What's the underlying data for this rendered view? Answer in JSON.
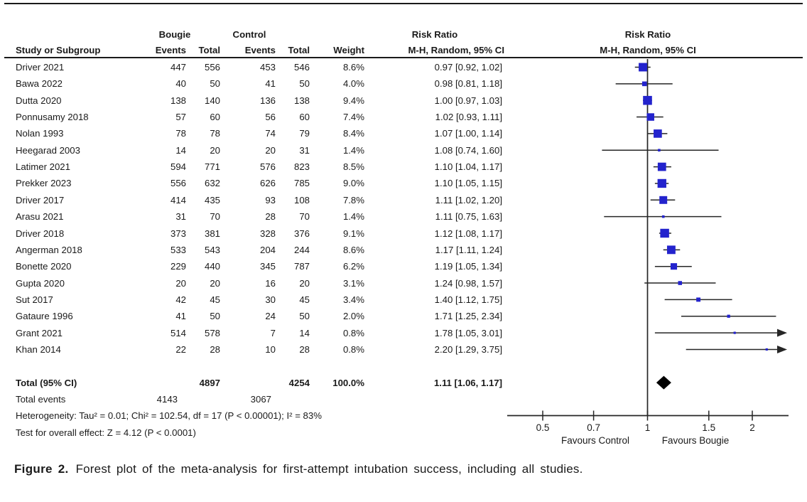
{
  "chart_data": {
    "type": "forest",
    "group_headers": {
      "bougie": "Bougie",
      "control": "Control",
      "risk_ratio_left": "Risk Ratio",
      "risk_ratio_right": "Risk Ratio"
    },
    "column_headers": {
      "study": "Study or Subgroup",
      "events": "Events",
      "total": "Total",
      "events2": "Events",
      "total2": "Total",
      "weight": "Weight",
      "mh_ci_left": "M-H, Random, 95% CI",
      "mh_ci_right": "M-H, Random, 95% CI"
    },
    "studies": [
      {
        "name": "Driver 2021",
        "b_events": "447",
        "b_total": "556",
        "c_events": "453",
        "c_total": "546",
        "weight": "8.6%",
        "weight_pct": 8.6,
        "rr": 0.97,
        "ci_low": 0.92,
        "ci_high": 1.02,
        "label": "0.97 [0.92, 1.02]"
      },
      {
        "name": "Bawa 2022",
        "b_events": "40",
        "b_total": "50",
        "c_events": "41",
        "c_total": "50",
        "weight": "4.0%",
        "weight_pct": 4.0,
        "rr": 0.98,
        "ci_low": 0.81,
        "ci_high": 1.18,
        "label": "0.98 [0.81, 1.18]"
      },
      {
        "name": "Dutta 2020",
        "b_events": "138",
        "b_total": "140",
        "c_events": "136",
        "c_total": "138",
        "weight": "9.4%",
        "weight_pct": 9.4,
        "rr": 1.0,
        "ci_low": 0.97,
        "ci_high": 1.03,
        "label": "1.00 [0.97, 1.03]"
      },
      {
        "name": "Ponnusamy 2018",
        "b_events": "57",
        "b_total": "60",
        "c_events": "56",
        "c_total": "60",
        "weight": "7.4%",
        "weight_pct": 7.4,
        "rr": 1.02,
        "ci_low": 0.93,
        "ci_high": 1.11,
        "label": "1.02 [0.93, 1.11]"
      },
      {
        "name": "Nolan 1993",
        "b_events": "78",
        "b_total": "78",
        "c_events": "74",
        "c_total": "79",
        "weight": "8.4%",
        "weight_pct": 8.4,
        "rr": 1.07,
        "ci_low": 1.0,
        "ci_high": 1.14,
        "label": "1.07 [1.00, 1.14]"
      },
      {
        "name": "Heegarad 2003",
        "b_events": "14",
        "b_total": "20",
        "c_events": "20",
        "c_total": "31",
        "weight": "1.4%",
        "weight_pct": 1.4,
        "rr": 1.08,
        "ci_low": 0.74,
        "ci_high": 1.6,
        "label": "1.08 [0.74, 1.60]"
      },
      {
        "name": "Latimer 2021",
        "b_events": "594",
        "b_total": "771",
        "c_events": "576",
        "c_total": "823",
        "weight": "8.5%",
        "weight_pct": 8.5,
        "rr": 1.1,
        "ci_low": 1.04,
        "ci_high": 1.17,
        "label": "1.10 [1.04, 1.17]"
      },
      {
        "name": "Prekker 2023",
        "b_events": "556",
        "b_total": "632",
        "c_events": "626",
        "c_total": "785",
        "weight": "9.0%",
        "weight_pct": 9.0,
        "rr": 1.1,
        "ci_low": 1.05,
        "ci_high": 1.15,
        "label": "1.10 [1.05, 1.15]"
      },
      {
        "name": "Driver 2017",
        "b_events": "414",
        "b_total": "435",
        "c_events": "93",
        "c_total": "108",
        "weight": "7.8%",
        "weight_pct": 7.8,
        "rr": 1.11,
        "ci_low": 1.02,
        "ci_high": 1.2,
        "label": "1.11 [1.02, 1.20]"
      },
      {
        "name": "Arasu 2021",
        "b_events": "31",
        "b_total": "70",
        "c_events": "28",
        "c_total": "70",
        "weight": "1.4%",
        "weight_pct": 1.4,
        "rr": 1.11,
        "ci_low": 0.75,
        "ci_high": 1.63,
        "label": "1.11 [0.75, 1.63]"
      },
      {
        "name": "Driver 2018",
        "b_events": "373",
        "b_total": "381",
        "c_events": "328",
        "c_total": "376",
        "weight": "9.1%",
        "weight_pct": 9.1,
        "rr": 1.12,
        "ci_low": 1.08,
        "ci_high": 1.17,
        "label": "1.12 [1.08, 1.17]"
      },
      {
        "name": "Angerman 2018",
        "b_events": "533",
        "b_total": "543",
        "c_events": "204",
        "c_total": "244",
        "weight": "8.6%",
        "weight_pct": 8.6,
        "rr": 1.17,
        "ci_low": 1.11,
        "ci_high": 1.24,
        "label": "1.17 [1.11, 1.24]"
      },
      {
        "name": "Bonette 2020",
        "b_events": "229",
        "b_total": "440",
        "c_events": "345",
        "c_total": "787",
        "weight": "6.2%",
        "weight_pct": 6.2,
        "rr": 1.19,
        "ci_low": 1.05,
        "ci_high": 1.34,
        "label": "1.19 [1.05, 1.34]"
      },
      {
        "name": "Gupta 2020",
        "b_events": "20",
        "b_total": "20",
        "c_events": "16",
        "c_total": "20",
        "weight": "3.1%",
        "weight_pct": 3.1,
        "rr": 1.24,
        "ci_low": 0.98,
        "ci_high": 1.57,
        "label": "1.24 [0.98, 1.57]"
      },
      {
        "name": "Sut 2017",
        "b_events": "42",
        "b_total": "45",
        "c_events": "30",
        "c_total": "45",
        "weight": "3.4%",
        "weight_pct": 3.4,
        "rr": 1.4,
        "ci_low": 1.12,
        "ci_high": 1.75,
        "label": "1.40 [1.12, 1.75]"
      },
      {
        "name": "Gataure 1996",
        "b_events": "41",
        "b_total": "50",
        "c_events": "24",
        "c_total": "50",
        "weight": "2.0%",
        "weight_pct": 2.0,
        "rr": 1.71,
        "ci_low": 1.25,
        "ci_high": 2.34,
        "label": "1.71 [1.25, 2.34]"
      },
      {
        "name": "Grant 2021",
        "b_events": "514",
        "b_total": "578",
        "c_events": "7",
        "c_total": "14",
        "weight": "0.8%",
        "weight_pct": 0.8,
        "rr": 1.78,
        "ci_low": 1.05,
        "ci_high": 3.01,
        "label": "1.78 [1.05, 3.01]"
      },
      {
        "name": "Khan 2014",
        "b_events": "22",
        "b_total": "28",
        "c_events": "10",
        "c_total": "28",
        "weight": "0.8%",
        "weight_pct": 0.8,
        "rr": 2.2,
        "ci_low": 1.29,
        "ci_high": 3.75,
        "label": "2.20 [1.29, 3.75]"
      }
    ],
    "total": {
      "name": "Total (95% CI)",
      "b_total": "4897",
      "c_total": "4254",
      "weight": "100.0%",
      "rr": 1.11,
      "ci_low": 1.06,
      "ci_high": 1.17,
      "label": "1.11 [1.06, 1.17]"
    },
    "total_events": {
      "name": "Total events",
      "b_events": "4143",
      "c_events": "3067"
    },
    "heterogeneity": "Heterogeneity: Tau² = 0.01; Chi² = 102.54, df = 17 (P < 0.00001); I² = 83%",
    "overall_effect": "Test for overall effect: Z = 4.12 (P < 0.0001)",
    "axis": {
      "scale": "log",
      "ticks": [
        0.5,
        0.7,
        1,
        1.5,
        2
      ],
      "tick_labels": [
        "0.5",
        "0.7",
        "1",
        "1.5",
        "2"
      ],
      "left_label": "Favours Control",
      "right_label": "Favours Bougie",
      "xmin": 0.39,
      "xmax": 2.53
    },
    "colors": {
      "marker": "#2323cd",
      "ci_line": "#262626",
      "diamond": "#000000",
      "text": "#1a1a1a"
    }
  },
  "caption": {
    "label": "Figure 2.",
    "text": "Forest plot of the meta-analysis for first-attempt intubation success, including all studies."
  }
}
